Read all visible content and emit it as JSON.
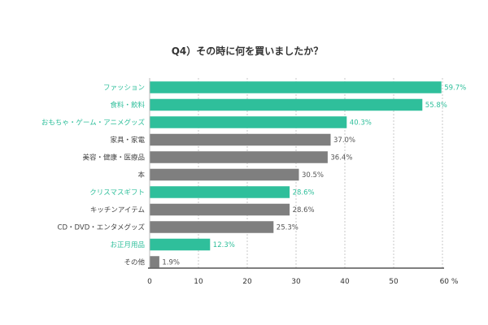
{
  "chart_data": {
    "type": "bar",
    "orientation": "horizontal",
    "title": "Q4）その時に何を買いましたか？",
    "categories": [
      "ファッション",
      "食料・飲料",
      "おもちゃ・ゲーム・アニメグッズ",
      "家具・家電",
      "美容・健康・医療品",
      "本",
      "クリスマスギフト",
      "キッチンアイテム",
      "CD・DVD・エンタメグッズ",
      "お正月用品",
      "その他"
    ],
    "values": [
      59.7,
      55.8,
      40.3,
      37.0,
      36.4,
      30.5,
      28.6,
      28.6,
      25.3,
      12.3,
      1.9
    ],
    "value_labels": [
      "59.7%",
      "55.8%",
      "40.3%",
      "37.0%",
      "36.4%",
      "30.5%",
      "28.6%",
      "28.6%",
      "25.3%",
      "12.3%",
      "1.9%"
    ],
    "highlighted": [
      true,
      true,
      true,
      false,
      false,
      false,
      true,
      false,
      false,
      true,
      false
    ],
    "xlim": [
      0,
      60
    ],
    "xticks": [
      0,
      10,
      20,
      30,
      40,
      50,
      60
    ],
    "xtick_labels": [
      "0",
      "10",
      "20",
      "30",
      "40",
      "50",
      "60 %"
    ],
    "grid": true,
    "colors": {
      "highlight": "#2fbf9b",
      "normal": "#7f7f7f",
      "grid": "#bbbbbb",
      "axis": "#333333"
    }
  }
}
